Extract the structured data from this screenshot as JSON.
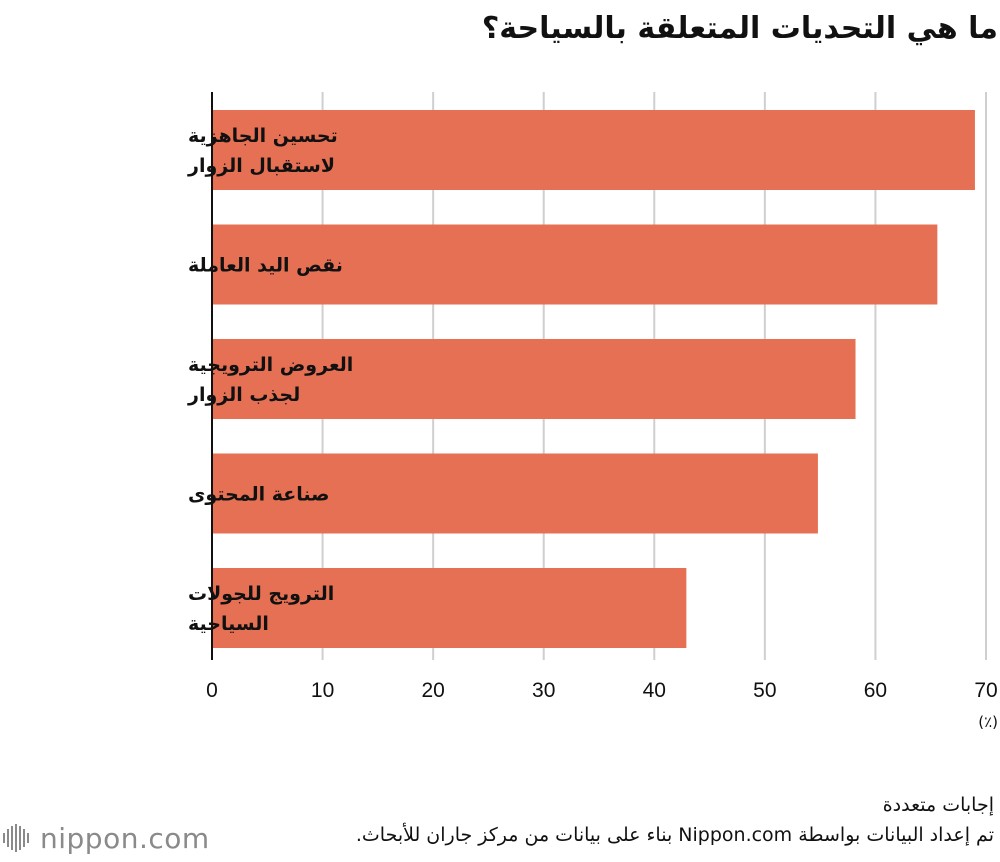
{
  "chart_data": {
    "type": "bar",
    "orientation": "horizontal",
    "title": "ما هي التحديات المتعلقة بالسياحة؟",
    "categories": [
      [
        "تحسين الجاهزية",
        "لاستقبال الزوار"
      ],
      [
        "نقص اليد العاملة"
      ],
      [
        "العروض الترويجية",
        "لجذب الزوار"
      ],
      [
        "صناعة المحتوى"
      ],
      [
        "الترويج للجولات",
        "السياحية"
      ]
    ],
    "values": [
      69,
      65.6,
      58.2,
      54.8,
      42.9
    ],
    "xlim": [
      0,
      70
    ],
    "xticks": [
      0,
      10,
      20,
      30,
      40,
      50,
      60,
      70
    ],
    "x_unit": "(٪)",
    "grid": true,
    "bar_color": "#E67053",
    "grid_color": "#CFCFCF"
  },
  "notes": {
    "line1": "إجابات متعددة",
    "source": "تم إعداد البيانات بواسطة Nippon.com بناء على بيانات من مركز جاران للأبحاث."
  },
  "logo": {
    "text": "nippon.com",
    "icon": "nippon-logo-icon"
  }
}
